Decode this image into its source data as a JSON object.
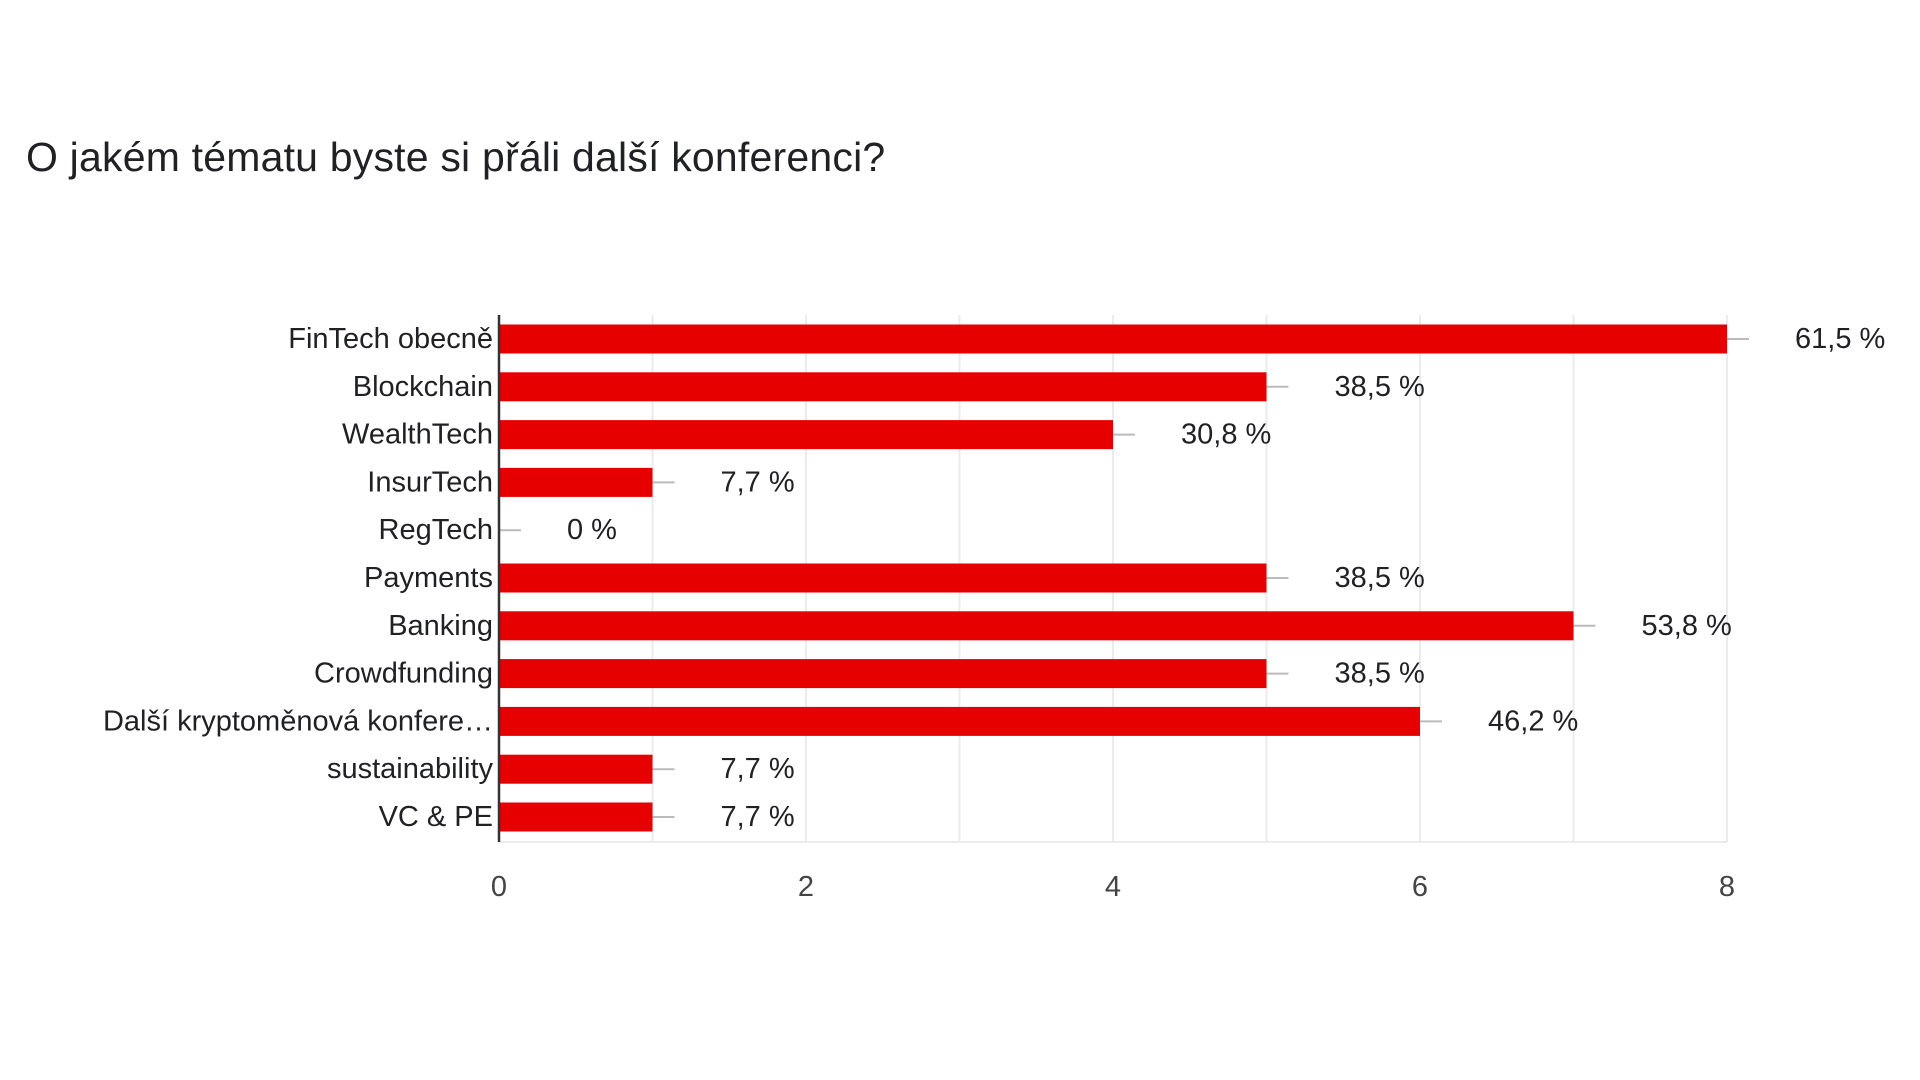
{
  "chart_data": {
    "type": "bar",
    "orientation": "horizontal",
    "title": "O jakém tématu byste si přáli další konferenci?",
    "categories": [
      "FinTech obecně",
      "Blockchain",
      "WealthTech",
      "InsurTech",
      "RegTech",
      "Payments",
      "Banking",
      "Crowdfunding",
      "Další kryptoměnová konfere…",
      "sustainability",
      "VC & PE"
    ],
    "values": [
      8,
      5,
      4,
      1,
      0,
      5,
      7,
      5,
      6,
      1,
      1
    ],
    "value_labels": [
      "61,5 %",
      "38,5 %",
      "30,8 %",
      "7,7 %",
      "0 %",
      "38,5 %",
      "53,8 %",
      "38,5 %",
      "46,2 %",
      "7,7 %",
      "7,7 %"
    ],
    "xlim": [
      0,
      8
    ],
    "xticks": [
      "0",
      "2",
      "4",
      "6",
      "8"
    ],
    "xlabel": "",
    "ylabel": "",
    "grid": true,
    "legend": "none",
    "colors": {
      "bar": "#e60000",
      "grid": "#ebebeb",
      "axis": "#333333",
      "leader": "#bbbbbb"
    }
  }
}
